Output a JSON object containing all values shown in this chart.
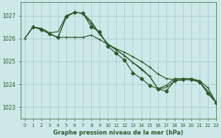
{
  "title": "Graphe pression niveau de la mer (hPa)",
  "bg_color": "#cce8e8",
  "grid_color": "#aacccc",
  "line_color": "#2d5a2d",
  "xlim": [
    -0.5,
    23
  ],
  "ylim": [
    1022.5,
    1027.6
  ],
  "yticks": [
    1023,
    1024,
    1025,
    1026,
    1027
  ],
  "xticks": [
    0,
    1,
    2,
    3,
    4,
    5,
    6,
    7,
    8,
    9,
    10,
    11,
    12,
    13,
    14,
    15,
    16,
    17,
    18,
    19,
    20,
    21,
    22,
    23
  ],
  "series": [
    {
      "x": [
        0,
        1,
        2,
        3,
        4,
        5,
        6,
        7,
        8,
        9,
        10,
        11,
        12,
        13,
        14,
        15,
        16,
        17,
        18,
        19,
        20,
        21,
        22,
        23
      ],
      "y": [
        1026.0,
        1026.5,
        1026.4,
        1026.2,
        1026.05,
        1026.05,
        1026.05,
        1026.05,
        1026.15,
        1025.95,
        1025.75,
        1025.55,
        1025.4,
        1025.2,
        1025.0,
        1024.75,
        1024.45,
        1024.25,
        1024.2,
        1024.2,
        1024.2,
        1024.15,
        1023.85,
        1023.2
      ],
      "marker": "+",
      "ms": 3.5,
      "lw": 0.9
    },
    {
      "x": [
        0,
        1,
        2,
        3,
        4,
        5,
        6,
        7,
        8,
        9,
        10,
        11,
        12,
        13,
        14,
        15,
        16,
        17,
        18,
        19,
        20,
        21,
        22,
        23
      ],
      "y": [
        1026.0,
        1026.5,
        1026.45,
        1026.25,
        1026.3,
        1027.0,
        1027.15,
        1027.1,
        1026.75,
        1026.2,
        1025.75,
        1025.5,
        1025.25,
        1024.95,
        1024.7,
        1024.35,
        1023.8,
        1023.85,
        1024.15,
        1024.2,
        1024.2,
        1024.1,
        1023.7,
        1023.2
      ],
      "marker": null,
      "ms": 0,
      "lw": 0.9
    },
    {
      "x": [
        0,
        1,
        2,
        3,
        4,
        5,
        6,
        7,
        8,
        9,
        10,
        11,
        12,
        13,
        14,
        15,
        16,
        17,
        18,
        19,
        20,
        21,
        22,
        23
      ],
      "y": [
        1026.0,
        1026.5,
        1026.4,
        1026.2,
        1026.05,
        1026.95,
        1027.15,
        1027.1,
        1026.65,
        1026.2,
        1025.75,
        1025.5,
        1025.25,
        1024.95,
        1024.65,
        1024.35,
        1023.8,
        1023.95,
        1024.25,
        1024.25,
        1024.25,
        1024.15,
        1023.6,
        1023.2
      ],
      "marker": "+",
      "ms": 3.5,
      "lw": 0.9
    },
    {
      "x": [
        1,
        2,
        3,
        4,
        5,
        6,
        7,
        8,
        9,
        10,
        11,
        12,
        13,
        14,
        15,
        16,
        17,
        18,
        19,
        20,
        21,
        22,
        23
      ],
      "y": [
        1026.5,
        1026.4,
        1026.2,
        1026.05,
        1026.95,
        1027.15,
        1027.1,
        1026.5,
        1026.3,
        1025.65,
        1025.35,
        1025.05,
        1024.5,
        1024.25,
        1023.95,
        1023.8,
        1023.7,
        1024.15,
        1024.2,
        1024.2,
        1024.1,
        1023.6,
        1023.2
      ],
      "marker": "D",
      "ms": 2.8,
      "lw": 0.9
    }
  ],
  "title_fontsize": 6.0,
  "xtick_fontsize": 4.8,
  "ytick_fontsize": 5.5
}
